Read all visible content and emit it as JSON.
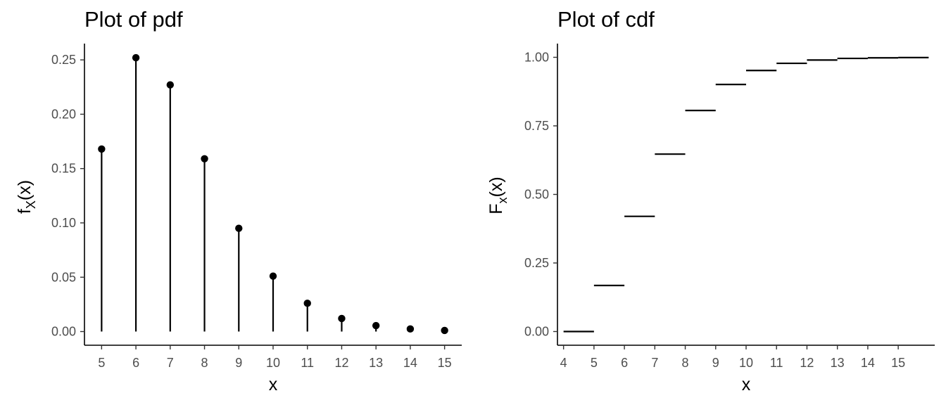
{
  "chart_data": [
    {
      "type": "scatter",
      "style": "lollipop",
      "title": "Plot of pdf",
      "xlabel": "x",
      "ylabel": {
        "base": "f",
        "sub": "X",
        "arg": "(x)"
      },
      "x": [
        5,
        6,
        7,
        8,
        9,
        10,
        11,
        12,
        13,
        14,
        15
      ],
      "y": [
        0.168,
        0.252,
        0.227,
        0.159,
        0.095,
        0.051,
        0.026,
        0.012,
        0.0055,
        0.0024,
        0.001
      ],
      "xticks": [
        "5",
        "6",
        "7",
        "8",
        "9",
        "10",
        "11",
        "12",
        "13",
        "14",
        "15"
      ],
      "yticks": [
        "0.00",
        "0.05",
        "0.10",
        "0.15",
        "0.20",
        "0.25"
      ],
      "xlim": [
        4.5,
        15.5
      ],
      "ylim": [
        -0.0126,
        0.265
      ],
      "grid": false
    },
    {
      "type": "line",
      "style": "step-segments",
      "title": "Plot of cdf",
      "xlabel": "x",
      "ylabel": {
        "base": "F",
        "sub": "x",
        "arg": "(x)"
      },
      "segments": [
        {
          "x0": 4,
          "x1": 5,
          "y": 0.0
        },
        {
          "x0": 5,
          "x1": 6,
          "y": 0.168
        },
        {
          "x0": 6,
          "x1": 7,
          "y": 0.42
        },
        {
          "x0": 7,
          "x1": 8,
          "y": 0.647
        },
        {
          "x0": 8,
          "x1": 9,
          "y": 0.806
        },
        {
          "x0": 9,
          "x1": 10,
          "y": 0.901
        },
        {
          "x0": 10,
          "x1": 11,
          "y": 0.952
        },
        {
          "x0": 11,
          "x1": 12,
          "y": 0.978
        },
        {
          "x0": 12,
          "x1": 13,
          "y": 0.99
        },
        {
          "x0": 13,
          "x1": 14,
          "y": 0.996
        },
        {
          "x0": 14,
          "x1": 15,
          "y": 0.998
        },
        {
          "x0": 15,
          "x1": 16,
          "y": 0.999
        }
      ],
      "xticks": [
        "4",
        "5",
        "6",
        "7",
        "8",
        "9",
        "10",
        "11",
        "12",
        "13",
        "14",
        "15"
      ],
      "yticks": [
        "0.00",
        "0.25",
        "0.50",
        "0.75",
        "1.00"
      ],
      "xlim": [
        3.8,
        16.2
      ],
      "ylim": [
        -0.05,
        1.05
      ],
      "grid": false
    }
  ]
}
